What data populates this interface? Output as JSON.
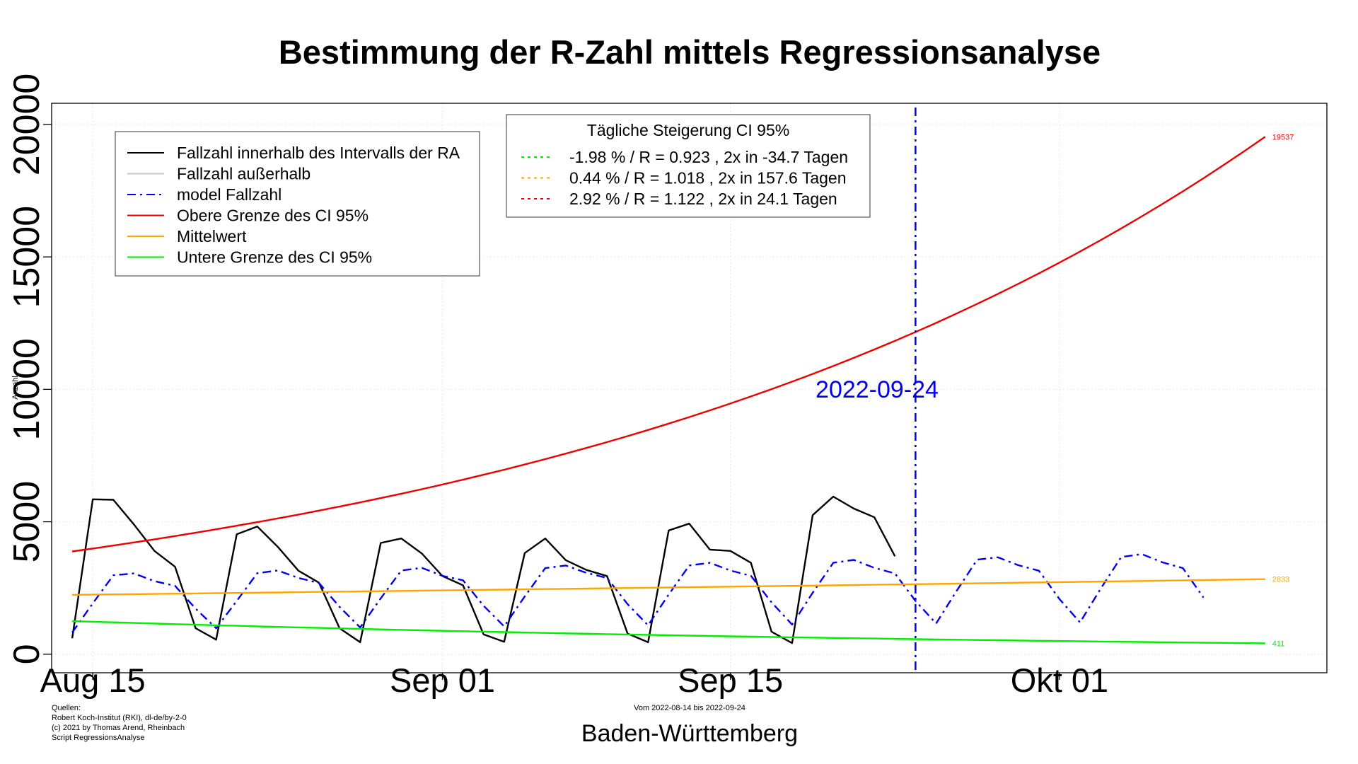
{
  "chart_data": {
    "type": "line",
    "title": "Bestimmung der R-Zahl mittels Regressionsanalyse",
    "ylabel": "Anzahl",
    "xlabel": "Baden-Württemberg",
    "date_range_note": "Vom 2022-08-14 bis 2022-09-24",
    "sources": [
      "Quellen:",
      "Robert Koch-Institut (RKI), dl-de/by-2-0",
      "(c) 2021 by Thomas Arend, Rheinbach",
      "Script RegressionsAnalyse"
    ],
    "x_range": [
      "2022-08-13",
      "2022-10-14"
    ],
    "ylim": [
      -700,
      20800
    ],
    "y_ticks": [
      0,
      5000,
      10000,
      15000,
      20000
    ],
    "y_tick_labels": [
      "0",
      "5000",
      "10000",
      "15000",
      "20000"
    ],
    "x_ticks": [
      {
        "date": "2022-08-15",
        "label": "Aug 15"
      },
      {
        "date": "2022-09-01",
        "label": "Sep 01"
      },
      {
        "date": "2022-09-15",
        "label": "Sep 15"
      },
      {
        "date": "2022-10-01",
        "label": "Okt 01"
      }
    ],
    "grid": true,
    "vline": {
      "date": "2022-09-24",
      "label": "2022-09-24",
      "color": "#0000ee"
    },
    "end_labels": [
      {
        "text": "19537",
        "value": 19537,
        "color": "#ee0000"
      },
      {
        "text": "2833",
        "value": 2833,
        "color": "#ffa500"
      },
      {
        "text": "411",
        "value": 411,
        "color": "#00ee00"
      }
    ],
    "series": [
      {
        "name": "Fallzahl innerhalb des Intervalls der RA",
        "color": "#000000",
        "x_start": "2022-08-14",
        "values": [
          600,
          5850,
          5830,
          4900,
          3900,
          3300,
          980,
          550,
          4530,
          4820,
          4050,
          3150,
          2700,
          980,
          450,
          4200,
          4370,
          3800,
          2950,
          2600,
          750,
          470,
          3820,
          4370,
          3550,
          3180,
          2950,
          780,
          450,
          4670,
          4930,
          3950,
          3900,
          3450,
          850,
          420,
          5250,
          5950,
          5500,
          5170,
          3700
        ]
      },
      {
        "name": "Fallzahl außerhalb",
        "color": "#c8c8c8",
        "x_start": "2022-08-14",
        "values": []
      },
      {
        "name": "model Fallzahl",
        "color": "#0000ee",
        "x_start": "2022-08-14",
        "values": [
          820,
          1920,
          2980,
          3050,
          2760,
          2580,
          1720,
          980,
          2010,
          3060,
          3160,
          2880,
          2690,
          1790,
          1010,
          2110,
          3160,
          3260,
          2960,
          2790,
          1830,
          1050,
          2180,
          3250,
          3350,
          3070,
          2880,
          1890,
          1090,
          2250,
          3350,
          3450,
          3160,
          2960,
          1960,
          1120,
          2320,
          3450,
          3560,
          3260,
          3050,
          2010,
          1160,
          2390,
          3570,
          3660,
          3360,
          3150,
          2080,
          1200,
          2470,
          3670,
          3780,
          3470,
          3250,
          2140
        ]
      },
      {
        "name": "Obere Grenze des CI 95%",
        "color": "#ee0000",
        "x_start": "2022-08-14",
        "start_value": 3880,
        "end_value": 19537,
        "daily_growth_percent": 2.92
      },
      {
        "name": "Mittelwert",
        "color": "#ffa500",
        "x_start": "2022-08-14",
        "start_value": 2240,
        "end_value": 2833,
        "daily_growth_percent": 0.44
      },
      {
        "name": "Untere Grenze des CI 95%",
        "color": "#00ee00",
        "x_start": "2022-08-14",
        "start_value": 1250,
        "end_value": 411,
        "daily_growth_percent": -1.98
      }
    ],
    "legend_main": {
      "placement": "top-left",
      "entries": [
        {
          "label": "Fallzahl innerhalb des Intervalls der RA",
          "color": "#000000",
          "dash": "solid"
        },
        {
          "label": "Fallzahl außerhalb",
          "color": "#c8c8c8",
          "dash": "solid"
        },
        {
          "label": "model Fallzahl",
          "color": "#0000ee",
          "dash": "dashdot"
        },
        {
          "label": "Obere Grenze des CI 95%",
          "color": "#ee0000",
          "dash": "solid"
        },
        {
          "label": "Mittelwert",
          "color": "#ffa500",
          "dash": "solid"
        },
        {
          "label": "Untere Grenze des CI 95%",
          "color": "#00ee00",
          "dash": "solid"
        }
      ]
    },
    "legend_ci": {
      "placement": "top-center",
      "title": "Tägliche Steigerung CI  95%",
      "entries": [
        {
          "label": "-1.98 % / R = 0.923 , 2x in -34.7 Tagen",
          "color": "#00ee00",
          "dash": "dotted"
        },
        {
          "label": "0.44 % / R = 1.018 , 2x in 157.6 Tagen",
          "color": "#ffa500",
          "dash": "dotted"
        },
        {
          "label": "2.92 % / R = 1.122 , 2x in 24.1 Tagen",
          "color": "#ee0000",
          "dash": "dotted"
        }
      ]
    }
  }
}
